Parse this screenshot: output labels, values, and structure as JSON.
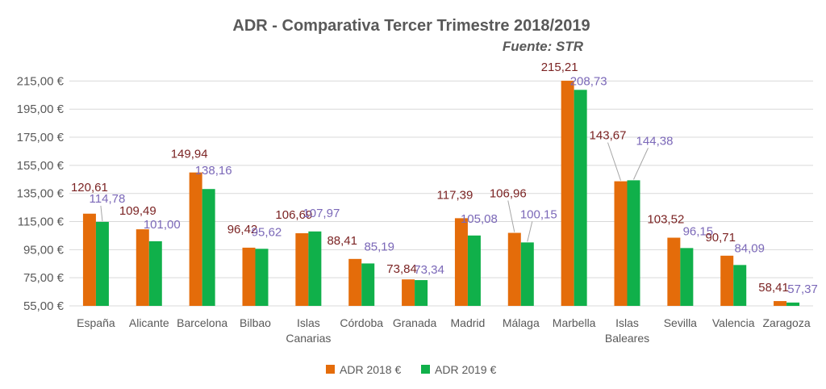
{
  "chart_data": {
    "type": "bar",
    "title": "ADR - Comparativa Tercer Trimestre 2018/2019",
    "subtitle": "Fuente: STR",
    "categories": [
      [
        "España"
      ],
      [
        "Alicante"
      ],
      [
        "Barcelona"
      ],
      [
        "Bilbao"
      ],
      [
        "Islas",
        "Canarias"
      ],
      [
        "Córdoba"
      ],
      [
        "Granada"
      ],
      [
        "Madrid"
      ],
      [
        "Málaga"
      ],
      [
        "Marbella"
      ],
      [
        "Islas",
        "Baleares"
      ],
      [
        "Sevilla"
      ],
      [
        "Valencia"
      ],
      [
        "Zaragoza"
      ]
    ],
    "series": [
      {
        "name": "ADR 2018 €",
        "color": "#e46c0a",
        "values": [
          120.61,
          109.49,
          149.94,
          96.42,
          106.69,
          88.41,
          73.84,
          117.39,
          106.96,
          215.21,
          143.67,
          103.52,
          90.71,
          58.41
        ],
        "labels": [
          "120,61",
          "109,49",
          "149,94",
          "96,42",
          "106,69",
          "88,41",
          "73,84",
          "117,39",
          "106,96",
          "215,21",
          "143,67",
          "103,52",
          "90,71",
          "58,41"
        ]
      },
      {
        "name": "ADR 2019 €",
        "color": "#10b04a",
        "values": [
          114.78,
          101.0,
          138.16,
          95.62,
          107.97,
          85.19,
          73.34,
          105.08,
          100.15,
          208.73,
          144.38,
          96.15,
          84.09,
          57.37
        ],
        "labels": [
          "114,78",
          "101,00",
          "138,16",
          "95,62",
          "107,97",
          "85,19",
          "73,34",
          "105,08",
          "100,15",
          "208,73",
          "144,38",
          "96,15",
          "84,09",
          "57,37"
        ]
      }
    ],
    "y_ticks": [
      55,
      75,
      95,
      115,
      135,
      155,
      175,
      195,
      215
    ],
    "y_tick_labels": [
      "55,00 €",
      "75,00 €",
      "95,00 €",
      "115,00 €",
      "135,00 €",
      "155,00 €",
      "175,00 €",
      "195,00 €",
      "215,00 €"
    ],
    "ylim": [
      55,
      225
    ],
    "grid": true,
    "legend_position": "bottom"
  }
}
